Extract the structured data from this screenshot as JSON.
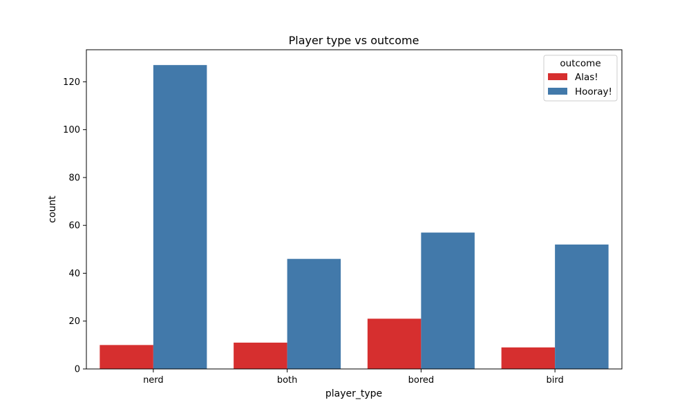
{
  "chart_data": {
    "type": "bar",
    "title": "Player type vs outcome",
    "xlabel": "player_type",
    "ylabel": "count",
    "categories": [
      "nerd",
      "both",
      "bored",
      "bird"
    ],
    "series": [
      {
        "name": "Alas!",
        "color": "#d62f2f",
        "values": [
          10,
          11,
          21,
          9
        ]
      },
      {
        "name": "Hooray!",
        "color": "#4279aa",
        "values": [
          127,
          46,
          57,
          52
        ]
      }
    ],
    "ylim": [
      0,
      133.4
    ],
    "yticks": [
      0,
      20,
      40,
      60,
      80,
      100,
      120
    ],
    "grid": false,
    "legend": {
      "title": "outcome",
      "placement": "top-right"
    }
  }
}
